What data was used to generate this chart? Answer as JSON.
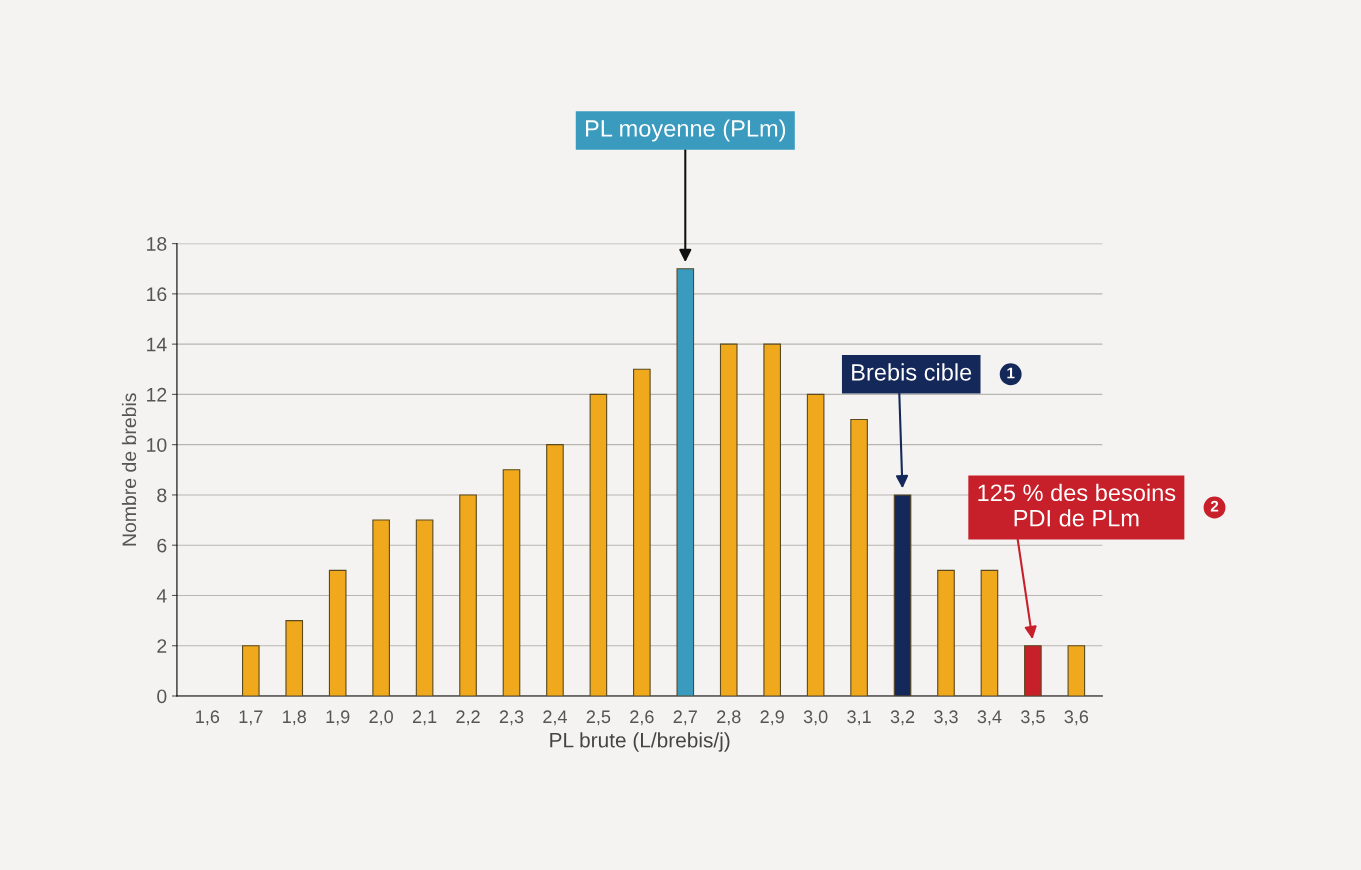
{
  "chart_data": {
    "type": "bar",
    "categories": [
      "1,6",
      "1,7",
      "1,8",
      "1,9",
      "2,0",
      "2,1",
      "2,2",
      "2,3",
      "2,4",
      "2,5",
      "2,6",
      "2,7",
      "2,8",
      "2,9",
      "3,0",
      "3,1",
      "3,2",
      "3,3",
      "3,4",
      "3,5",
      "3,6"
    ],
    "values": [
      0,
      2,
      3,
      5,
      7,
      7,
      8,
      9,
      10,
      12,
      13,
      17,
      14,
      14,
      12,
      11,
      8,
      5,
      5,
      2,
      2
    ],
    "colors": [
      "#f0a81c",
      "#f0a81c",
      "#f0a81c",
      "#f0a81c",
      "#f0a81c",
      "#f0a81c",
      "#f0a81c",
      "#f0a81c",
      "#f0a81c",
      "#f0a81c",
      "#f0a81c",
      "#3a9bbf",
      "#f0a81c",
      "#f0a81c",
      "#f0a81c",
      "#f0a81c",
      "#14285a",
      "#f0a81c",
      "#f0a81c",
      "#c8202a",
      "#f0a81c"
    ],
    "xlabel": "PL brute (L/brebis/j)",
    "ylabel": "Nombre de brebis",
    "ylim": [
      0,
      18
    ],
    "yticks": [
      0,
      2,
      4,
      6,
      8,
      10,
      12,
      14,
      16,
      18
    ],
    "grid": "y",
    "annotations": [
      {
        "text": "PL moyenne (PLm)",
        "x": "2,7",
        "y": 17
      },
      {
        "text": "Brebis cible",
        "x": "3,2",
        "y": 8
      },
      {
        "text": "125 % des besoins\nPDI de PLm",
        "x": "3,5",
        "y": 2
      },
      "1",
      "2"
    ]
  }
}
